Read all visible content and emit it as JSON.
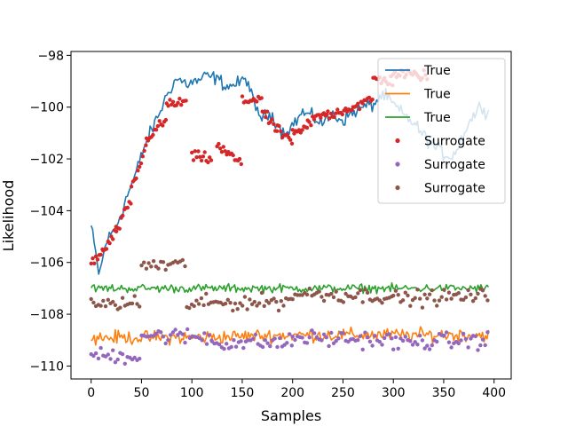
{
  "chart_data": {
    "type": "line",
    "xlabel": "Samples",
    "ylabel": "Likelihood",
    "xlim": [
      -20,
      417
    ],
    "ylim": [
      -110.5,
      -97.85
    ],
    "xticks": [
      0,
      50,
      100,
      150,
      200,
      250,
      300,
      350,
      400
    ],
    "yticks": [
      -110,
      -108,
      -106,
      -104,
      -102,
      -100,
      -98
    ],
    "grid": false,
    "legend_position": "top-right",
    "series": [
      {
        "name": "True",
        "kind": "line",
        "color": "#1f77b4",
        "keypoints": [
          [
            0,
            -104.6
          ],
          [
            8,
            -106.5
          ],
          [
            15,
            -105.2
          ],
          [
            25,
            -104.6
          ],
          [
            35,
            -103.5
          ],
          [
            45,
            -102.5
          ],
          [
            52,
            -101.6
          ],
          [
            60,
            -100.9
          ],
          [
            68,
            -100.2
          ],
          [
            78,
            -99.3
          ],
          [
            85,
            -98.9
          ],
          [
            95,
            -99.1
          ],
          [
            105,
            -99.0
          ],
          [
            115,
            -98.8
          ],
          [
            125,
            -98.9
          ],
          [
            135,
            -99.2
          ],
          [
            145,
            -99.1
          ],
          [
            155,
            -98.9
          ],
          [
            162,
            -100.0
          ],
          [
            170,
            -100.4
          ],
          [
            180,
            -100.3
          ],
          [
            190,
            -101.0
          ],
          [
            200,
            -100.7
          ],
          [
            210,
            -100.2
          ],
          [
            220,
            -100.4
          ],
          [
            230,
            -100.6
          ],
          [
            240,
            -100.3
          ],
          [
            250,
            -100.5
          ],
          [
            260,
            -100.2
          ],
          [
            270,
            -100.0
          ],
          [
            280,
            -99.9
          ],
          [
            290,
            -99.5
          ],
          [
            300,
            -99.9
          ],
          [
            310,
            -100.3
          ],
          [
            320,
            -100.6
          ],
          [
            330,
            -101.1
          ],
          [
            340,
            -101.5
          ],
          [
            350,
            -101.8
          ],
          [
            358,
            -101.9
          ],
          [
            365,
            -101.5
          ],
          [
            372,
            -100.8
          ],
          [
            380,
            -100.3
          ],
          [
            388,
            -99.9
          ],
          [
            395,
            -100.3
          ]
        ],
        "noise": 0.33
      },
      {
        "name": "True",
        "kind": "line",
        "color": "#ff7f0e",
        "keypoints": [
          [
            0,
            -108.9
          ],
          [
            100,
            -108.9
          ],
          [
            200,
            -108.8
          ],
          [
            300,
            -108.8
          ],
          [
            395,
            -108.8
          ]
        ],
        "noise": 0.32
      },
      {
        "name": "True",
        "kind": "line",
        "color": "#2ca02c",
        "keypoints": [
          [
            0,
            -107.0
          ],
          [
            100,
            -107.0
          ],
          [
            200,
            -107.0
          ],
          [
            300,
            -107.0
          ],
          [
            395,
            -107.0
          ]
        ],
        "noise": 0.2
      },
      {
        "name": "Surrogate",
        "kind": "scatter",
        "color": "#d62728",
        "segments": [
          {
            "x": [
              0,
              12
            ],
            "y": [
              -106.0,
              -105.6
            ]
          },
          {
            "x": [
              12,
              25
            ],
            "y": [
              -105.6,
              -104.8
            ]
          },
          {
            "x": [
              25,
              40
            ],
            "y": [
              -104.8,
              -103.6
            ]
          },
          {
            "x": [
              40,
              55
            ],
            "y": [
              -103.2,
              -101.5
            ]
          },
          {
            "x": [
              55,
              75
            ],
            "y": [
              -101.2,
              -100.5
            ]
          },
          {
            "x": [
              75,
              95
            ],
            "y": [
              -99.9,
              -99.8
            ]
          },
          {
            "x": [
              100,
              120
            ],
            "y": [
              -101.9,
              -102.0
            ]
          },
          {
            "x": [
              125,
              150
            ],
            "y": [
              -101.5,
              -102.2
            ]
          },
          {
            "x": [
              150,
              170
            ],
            "y": [
              -99.8,
              -99.6
            ]
          },
          {
            "x": [
              170,
              185
            ],
            "y": [
              -100.2,
              -100.9
            ]
          },
          {
            "x": [
              185,
              200
            ],
            "y": [
              -100.9,
              -101.3
            ]
          },
          {
            "x": [
              200,
              215
            ],
            "y": [
              -101.1,
              -100.8
            ]
          },
          {
            "x": [
              215,
              235
            ],
            "y": [
              -100.6,
              -100.2
            ]
          },
          {
            "x": [
              235,
              260
            ],
            "y": [
              -100.3,
              -100.0
            ]
          },
          {
            "x": [
              260,
              280
            ],
            "y": [
              -100.0,
              -99.7
            ]
          },
          {
            "x": [
              280,
              300
            ],
            "y": [
              -98.9,
              -99.0
            ]
          },
          {
            "x": [
              300,
              335
            ],
            "y": [
              -98.7,
              -98.8
            ]
          }
        ],
        "noise": 0.22,
        "step": 1.6
      },
      {
        "name": "Surrogate",
        "kind": "scatter",
        "color": "#9467bd",
        "segments": [
          {
            "x": [
              0,
              50
            ],
            "y": [
              -109.6,
              -109.6
            ]
          },
          {
            "x": [
              50,
              120
            ],
            "y": [
              -108.8,
              -108.9
            ]
          },
          {
            "x": [
              120,
              200
            ],
            "y": [
              -109.1,
              -109.1
            ]
          },
          {
            "x": [
              200,
              300
            ],
            "y": [
              -108.9,
              -109.0
            ]
          },
          {
            "x": [
              300,
              395
            ],
            "y": [
              -109.1,
              -109.0
            ]
          }
        ],
        "noise": 0.34,
        "step": 2.4
      },
      {
        "name": "Surrogate",
        "kind": "scatter",
        "color": "#8c564b",
        "segments": [
          {
            "x": [
              0,
              50
            ],
            "y": [
              -107.6,
              -107.6
            ]
          },
          {
            "x": [
              50,
              95
            ],
            "y": [
              -106.1,
              -106.1
            ]
          },
          {
            "x": [
              95,
              200
            ],
            "y": [
              -107.6,
              -107.5
            ]
          },
          {
            "x": [
              200,
              300
            ],
            "y": [
              -107.2,
              -107.3
            ]
          },
          {
            "x": [
              300,
              395
            ],
            "y": [
              -107.4,
              -107.3
            ]
          }
        ],
        "noise": 0.32,
        "step": 2.4
      }
    ]
  }
}
